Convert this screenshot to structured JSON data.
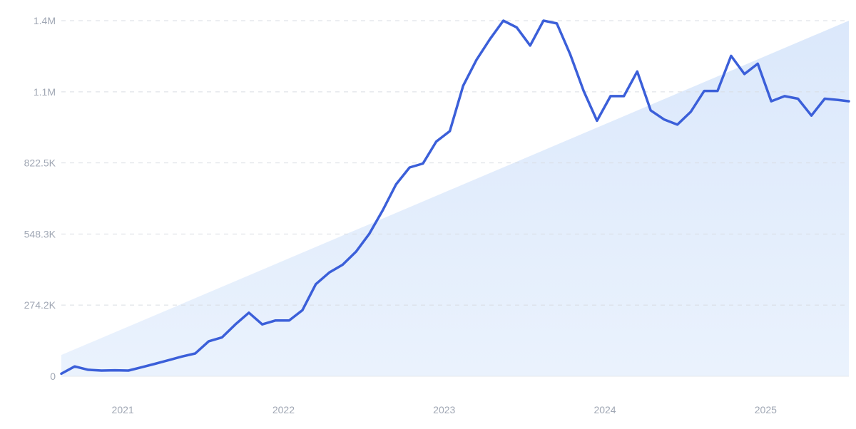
{
  "chart_data": {
    "type": "line",
    "title": "",
    "xlabel": "",
    "ylabel": "",
    "x_tick_labels": [
      "2021",
      "2022",
      "2023",
      "2024",
      "2025"
    ],
    "x_tick_years": [
      2021,
      2022,
      2023,
      2024,
      2025
    ],
    "y_tick_labels": [
      "0",
      "274.2K",
      "548.3K",
      "822.5K",
      "1.1M",
      "1.4M"
    ],
    "y_tick_values": [
      0,
      274200,
      548300,
      822500,
      1096600,
      1370800
    ],
    "xlim": [
      2020.6,
      2025.5
    ],
    "ylim": [
      0,
      1370800
    ],
    "grid": true,
    "legend": "none",
    "colors": {
      "line": "#3b5fd9",
      "trend_fill": "#e3eefc",
      "grid": "#d9dde3",
      "axis_text": "#a0a7b4",
      "baseline": "#e4e8ee"
    },
    "trend": {
      "x": [
        2020.6,
        2025.5
      ],
      "y": [
        82000,
        1370800
      ]
    },
    "series": [
      {
        "x": [
          2020.6,
          2020.683,
          2020.767,
          2020.85,
          2020.933,
          2021.017,
          2021.1,
          2021.183,
          2021.267,
          2021.35,
          2021.433,
          2021.517,
          2021.6,
          2021.683,
          2021.767,
          2021.85,
          2021.933,
          2022.017,
          2022.1,
          2022.183,
          2022.267,
          2022.35,
          2022.433,
          2022.517,
          2022.6,
          2022.683,
          2022.767,
          2022.85,
          2022.933,
          2023.017,
          2023.1,
          2023.183,
          2023.267,
          2023.35,
          2023.433,
          2023.517,
          2023.6,
          2023.683,
          2023.767,
          2023.85,
          2023.933,
          2024.017,
          2024.1,
          2024.183,
          2024.267,
          2024.35,
          2024.433,
          2024.517,
          2024.6,
          2024.683,
          2024.767,
          2024.85,
          2024.933,
          2025.017,
          2025.1,
          2025.183,
          2025.267,
          2025.35,
          2025.433,
          2025.5
        ],
        "y": [
          10000,
          38000,
          25000,
          22000,
          23000,
          22000,
          35000,
          48000,
          62000,
          76000,
          88000,
          135000,
          150000,
          200000,
          245000,
          200000,
          215000,
          215000,
          255000,
          355000,
          400000,
          430000,
          480000,
          550000,
          640000,
          740000,
          805000,
          820000,
          905000,
          945000,
          1120000,
          1220000,
          1300000,
          1370800,
          1345000,
          1275000,
          1370800,
          1360000,
          1240000,
          1100000,
          985000,
          1080000,
          1080000,
          1175000,
          1025000,
          990000,
          970000,
          1020000,
          1100000,
          1100000,
          1235000,
          1165000,
          1205000,
          1060000,
          1080000,
          1070000,
          1005000,
          1070000,
          1065000,
          1060000
        ]
      }
    ]
  }
}
